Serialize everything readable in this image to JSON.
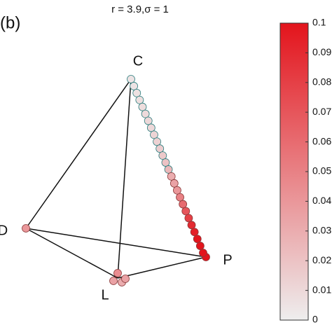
{
  "chart_data": {
    "type": "simplex",
    "title": "r = 3.9,σ = 1",
    "panel_label": "(b)",
    "vertices": [
      {
        "label": "C"
      },
      {
        "label": "D",
        "values": [
          0.04
        ]
      },
      {
        "label": "L",
        "values": [
          0.045,
          0.035,
          0.03,
          0.035
        ]
      },
      {
        "label": "P",
        "values": [
          0.1
        ]
      }
    ],
    "trajectory": {
      "from": "C",
      "to": "P",
      "values": [
        0.005,
        0.005,
        0.006,
        0.007,
        0.008,
        0.009,
        0.01,
        0.01,
        0.012,
        0.013,
        0.015,
        0.017,
        0.02,
        0.025,
        0.03,
        0.035,
        0.04,
        0.05,
        0.06,
        0.07,
        0.08,
        0.09,
        0.095,
        0.1,
        0.1,
        0.1
      ]
    },
    "colorbar": {
      "lim": [
        0,
        0.1
      ],
      "ticks": [
        0,
        0.01,
        0.02,
        0.03,
        0.04,
        0.05,
        0.06,
        0.07,
        0.08,
        0.09,
        0.1
      ],
      "colors": [
        "#eeeeee",
        "#e3141c"
      ]
    }
  }
}
